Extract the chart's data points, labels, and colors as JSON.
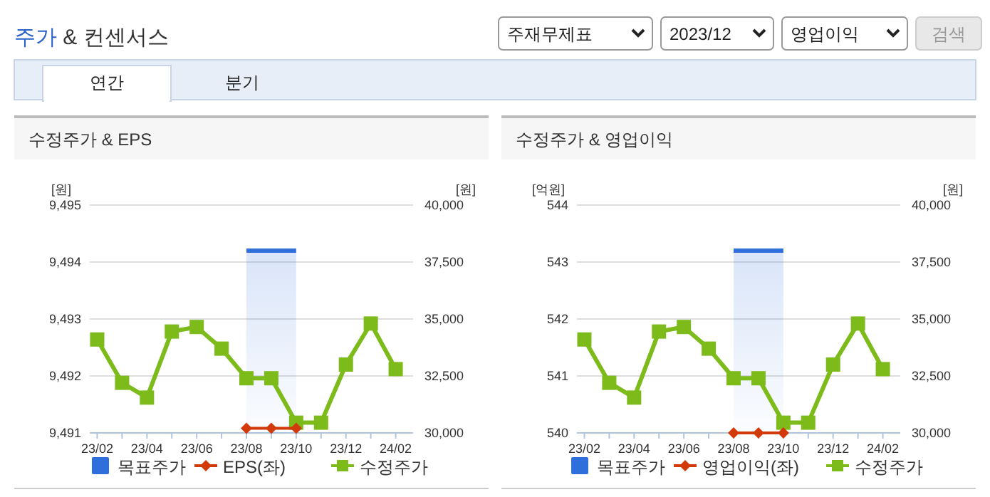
{
  "chart_data": [
    {
      "type": "other",
      "annotations": [
        "주가 & 컨센서스",
        "주재무제표",
        "2023/12",
        "영업이익",
        "검색",
        "연간",
        "분기"
      ]
    },
    {
      "type": "line",
      "title": "수정주가 & EPS",
      "ylabel": "[원]",
      "y2label": "[원]",
      "grid": "y",
      "legend": "bottom",
      "categories": [
        "23/02",
        null,
        "23/04",
        null,
        "23/06",
        null,
        "23/08",
        null,
        "23/10",
        null,
        "23/12",
        null,
        "24/02"
      ],
      "ylim": [
        9491,
        9495
      ],
      "yticks": [
        {
          "value": 9491,
          "label": "9,491"
        },
        {
          "value": 9492,
          "label": "9,492"
        },
        {
          "value": 9493,
          "label": "9,493"
        },
        {
          "value": 9494,
          "label": "9,494"
        },
        {
          "value": 9495,
          "label": "9,495"
        }
      ],
      "y2lim": [
        30000,
        40000
      ],
      "y2ticks": [
        {
          "value": 30000,
          "label": "30,000"
        },
        {
          "value": 32500,
          "label": "32,500"
        },
        {
          "value": 35000,
          "label": "35,000"
        },
        {
          "value": 37500,
          "label": "37,500"
        },
        {
          "value": 40000,
          "label": "40,000"
        }
      ],
      "series": [
        {
          "name": "목표주가",
          "type": "area",
          "axis": "y2",
          "color": "#2f6fdb",
          "values": [
            null,
            null,
            null,
            null,
            null,
            null,
            38000,
            38000,
            38000,
            null,
            null,
            null,
            null
          ]
        },
        {
          "name": "EPS(좌)",
          "type": "line",
          "marker": "diamond",
          "color": "#d23a0a",
          "values": [
            null,
            null,
            null,
            null,
            null,
            null,
            9491.08,
            9491.08,
            9491.08,
            null,
            null,
            null,
            null
          ]
        },
        {
          "name": "수정주가",
          "type": "line",
          "axis": "y2",
          "marker": "square",
          "color": "#7cbb1a",
          "values": [
            34100,
            32200,
            31550,
            34450,
            34650,
            33700,
            32400,
            32400,
            30450,
            30450,
            33000,
            34800,
            32800
          ]
        }
      ]
    },
    {
      "type": "line",
      "title": "수정주가 & 영업이익",
      "ylabel": "[억원]",
      "y2label": "[원]",
      "grid": "y",
      "legend": "bottom",
      "categories": [
        "23/02",
        null,
        "23/04",
        null,
        "23/06",
        null,
        "23/08",
        null,
        "23/10",
        null,
        "23/12",
        null,
        "24/02"
      ],
      "ylim": [
        540,
        544
      ],
      "yticks": [
        540,
        541,
        542,
        543,
        544
      ],
      "y2lim": [
        30000,
        40000
      ],
      "y2ticks": [
        {
          "value": 30000,
          "label": "30,000"
        },
        {
          "value": 32500,
          "label": "32,500"
        },
        {
          "value": 35000,
          "label": "35,000"
        },
        {
          "value": 37500,
          "label": "37,500"
        },
        {
          "value": 40000,
          "label": "40,000"
        }
      ],
      "series": [
        {
          "name": "목표주가",
          "type": "area",
          "axis": "y2",
          "color": "#2f6fdb",
          "values": [
            null,
            null,
            null,
            null,
            null,
            null,
            38000,
            38000,
            38000,
            null,
            null,
            null,
            null
          ]
        },
        {
          "name": "영업이익(좌)",
          "type": "line",
          "marker": "diamond",
          "color": "#d23a0a",
          "values": [
            null,
            null,
            null,
            null,
            null,
            null,
            540,
            540,
            540,
            null,
            null,
            null,
            null
          ]
        },
        {
          "name": "수정주가",
          "type": "line",
          "axis": "y2",
          "marker": "square",
          "color": "#7cbb1a",
          "values": [
            34100,
            32200,
            31550,
            34450,
            34650,
            33700,
            32400,
            32400,
            30450,
            30450,
            33000,
            34800,
            32800
          ]
        }
      ]
    }
  ]
}
